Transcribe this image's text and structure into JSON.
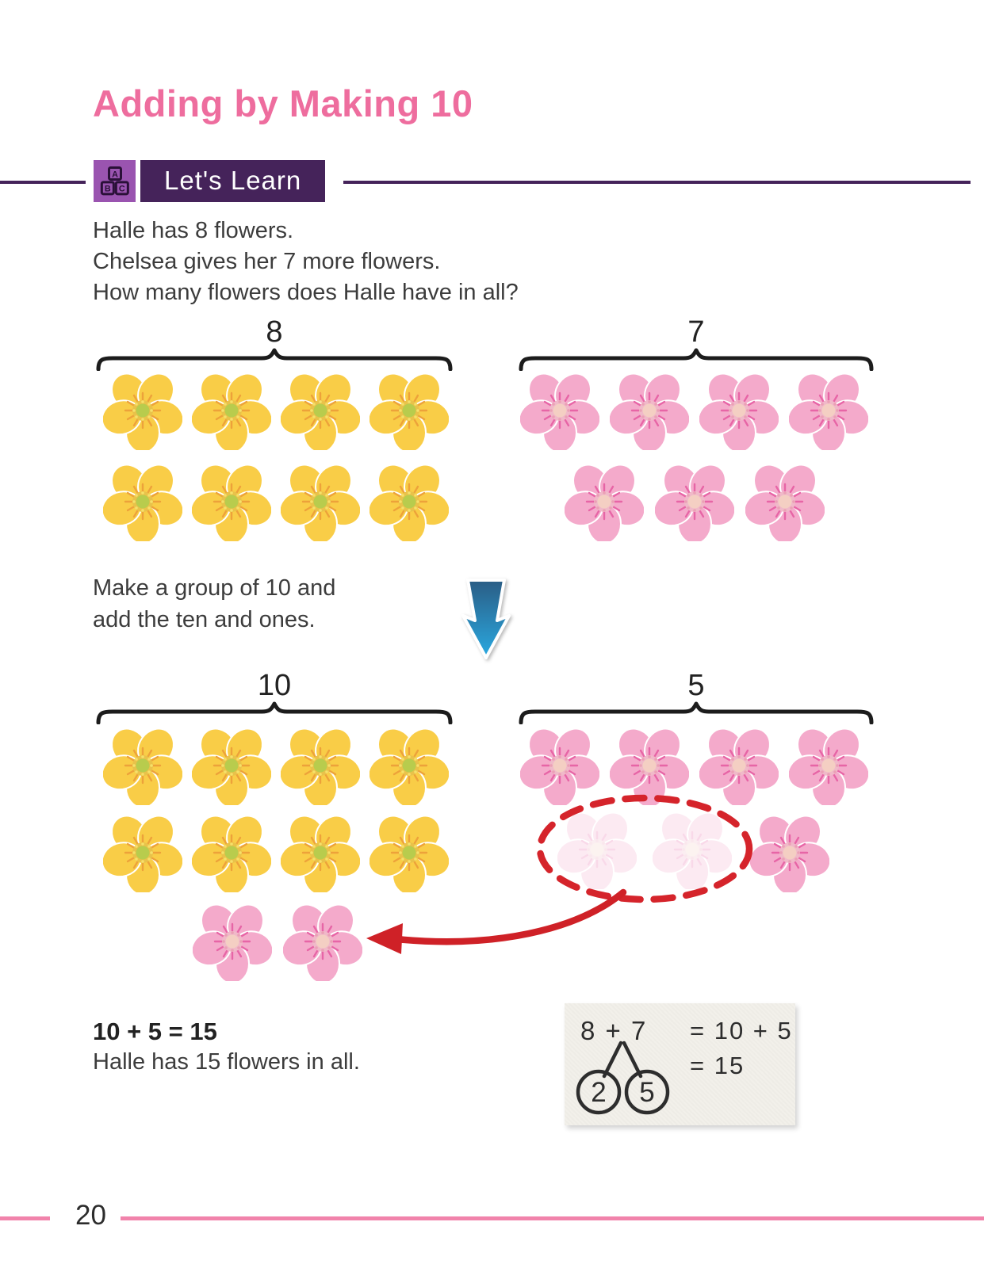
{
  "page": {
    "title": "Adding by Making 10",
    "page_number": "20"
  },
  "lets_learn": {
    "label": "Let's Learn",
    "icon": "abc-blocks-icon"
  },
  "problem": {
    "line1": "Halle has 8 flowers.",
    "line2": "Chelsea gives her 7 more flowers.",
    "line3": "How many flowers does Halle have in all?"
  },
  "instruction": {
    "line1": "Make a group of 10 and",
    "line2": "add the ten and ones."
  },
  "labels": {
    "top_left": "8",
    "top_right": "7",
    "bottom_left": "10",
    "bottom_right": "5"
  },
  "flower_rows": {
    "top_left_row1": {
      "type": "yellow",
      "count": 4
    },
    "top_left_row2": {
      "type": "yellow",
      "count": 4
    },
    "top_right_row1": {
      "type": "pink",
      "count": 4
    },
    "top_right_row2": {
      "type": "pink",
      "count": 3
    },
    "bottom_left_row1": {
      "type": "yellow",
      "count": 4
    },
    "bottom_left_row2": {
      "type": "yellow",
      "count": 4
    },
    "moved_pair": {
      "type": "pink",
      "count": 2
    },
    "bottom_right_row1": {
      "type": "pink",
      "count": 4
    },
    "ghost_pair": {
      "type": "pink",
      "count": 2,
      "ghost": true
    },
    "remaining_one": {
      "type": "pink",
      "count": 1
    }
  },
  "solution": {
    "equation": "10 + 5 = 15",
    "sentence": "Halle has 15 flowers in all."
  },
  "number_bond": {
    "top": "8 + 7",
    "part_left": "2",
    "part_right": "5",
    "line1": "= 10 + 5",
    "line2": "= 15"
  },
  "icons": {
    "banner": "abc-blocks-icon",
    "transform": "blue-down-arrow-icon",
    "move": "red-curved-arrow",
    "grouping": "red-dashed-ellipse"
  },
  "colors": {
    "title": "#ee6d9e",
    "banner": "#45235a",
    "banner_icon_bg": "#9a54b0",
    "accent_red": "#cf2127",
    "arrow_blue_top": "#2a5d85",
    "arrow_blue_bottom": "#2aa9e1",
    "flower_yellow": "#f9cd47",
    "flower_pink": "#f4aacb",
    "footer_rule": "#f183ab"
  }
}
